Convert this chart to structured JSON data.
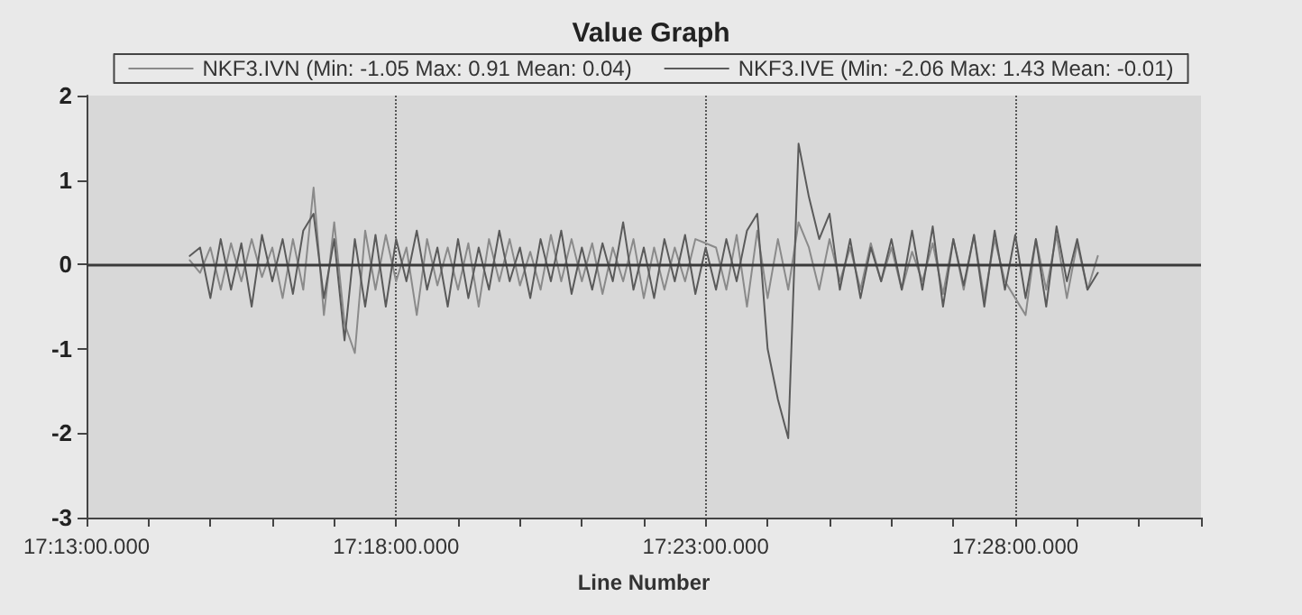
{
  "chart_data": {
    "type": "line",
    "title": "Value Graph",
    "xlabel": "Line Number",
    "categories": [
      "17:13:00.000",
      null,
      null,
      null,
      null,
      null,
      null,
      null,
      null,
      null,
      null,
      null,
      null,
      null,
      null,
      null,
      null,
      null,
      null,
      null,
      null,
      null,
      null,
      null,
      null,
      null,
      null,
      null,
      null,
      null,
      "17:18:00.000",
      null,
      null,
      null,
      null,
      null,
      null,
      null,
      null,
      null,
      null,
      null,
      null,
      null,
      null,
      null,
      null,
      null,
      null,
      null,
      null,
      null,
      null,
      null,
      null,
      null,
      null,
      null,
      null,
      null,
      "17:23:00.000",
      null,
      null,
      null,
      null,
      null,
      null,
      null,
      null,
      null,
      null,
      null,
      null,
      null,
      null,
      null,
      null,
      null,
      null,
      null,
      null,
      null,
      null,
      null,
      null,
      null,
      null,
      null,
      null,
      null,
      "17:28:00.000",
      null,
      null,
      null,
      null,
      null,
      null,
      null,
      null,
      null,
      null,
      null,
      null,
      null,
      null,
      null,
      null,
      null,
      null
    ],
    "series": [
      {
        "name": "NKF3.IVN (Min: -1.05 Max: 0.91 Mean: 0.04)",
        "color": "#8a8a8a",
        "values": [
          null,
          null,
          null,
          null,
          null,
          null,
          null,
          null,
          null,
          null,
          0.05,
          -0.1,
          0.2,
          -0.3,
          0.25,
          -0.2,
          0.3,
          -0.15,
          0.2,
          -0.4,
          0.3,
          -0.3,
          0.91,
          -0.6,
          0.5,
          -0.7,
          -1.05,
          0.4,
          -0.3,
          0.35,
          -0.2,
          0.2,
          -0.6,
          0.3,
          -0.25,
          0.2,
          -0.3,
          0.25,
          -0.5,
          0.3,
          -0.2,
          0.3,
          -0.25,
          0.15,
          -0.3,
          0.35,
          -0.2,
          0.3,
          -0.2,
          0.25,
          -0.35,
          0.2,
          -0.2,
          0.3,
          -0.4,
          0.2,
          -0.3,
          0.2,
          -0.2,
          0.3,
          0.25,
          0.2,
          -0.3,
          0.35,
          -0.5,
          0.4,
          -0.4,
          0.3,
          -0.3,
          0.5,
          0.2,
          -0.3,
          0.3,
          -0.2,
          0.2,
          -0.3,
          0.25,
          -0.2,
          0.2,
          -0.3,
          0.15,
          -0.2,
          0.25,
          -0.35,
          0.3,
          -0.3,
          0.35,
          -0.4,
          0.3,
          -0.2,
          -0.4,
          -0.6,
          0.3,
          -0.3,
          0.35,
          -0.4,
          0.25,
          -0.3,
          0.1,
          null,
          null,
          null,
          null,
          null,
          null,
          null,
          null,
          null,
          null
        ]
      },
      {
        "name": "NKF3.IVE (Min: -2.06 Max: 1.43 Mean: -0.01)",
        "color": "#5a5a5a",
        "values": [
          null,
          null,
          null,
          null,
          null,
          null,
          null,
          null,
          null,
          null,
          0.1,
          0.2,
          -0.4,
          0.3,
          -0.3,
          0.25,
          -0.5,
          0.35,
          -0.2,
          0.3,
          -0.35,
          0.4,
          0.6,
          -0.4,
          0.3,
          -0.9,
          0.3,
          -0.5,
          0.35,
          -0.5,
          0.3,
          -0.2,
          0.4,
          -0.3,
          0.2,
          -0.5,
          0.3,
          -0.4,
          0.2,
          -0.3,
          0.4,
          -0.2,
          0.2,
          -0.4,
          0.3,
          -0.2,
          0.4,
          -0.35,
          0.2,
          -0.3,
          0.25,
          -0.2,
          0.5,
          -0.3,
          0.2,
          -0.4,
          0.3,
          -0.2,
          0.35,
          -0.35,
          0.2,
          -0.3,
          0.3,
          -0.2,
          0.4,
          0.6,
          -1.0,
          -1.6,
          -2.06,
          1.43,
          0.8,
          0.3,
          0.6,
          -0.3,
          0.3,
          -0.4,
          0.2,
          -0.2,
          0.3,
          -0.3,
          0.4,
          -0.3,
          0.45,
          -0.5,
          0.3,
          -0.25,
          0.35,
          -0.5,
          0.4,
          -0.3,
          0.35,
          -0.4,
          0.3,
          -0.5,
          0.45,
          -0.2,
          0.3,
          -0.3,
          -0.1,
          null,
          null,
          null,
          null,
          null,
          null,
          null,
          null,
          null,
          null
        ]
      }
    ],
    "ylim": [
      -3,
      2
    ],
    "yticks": [
      -3,
      -2,
      -1,
      0,
      1,
      2
    ],
    "grid": "x",
    "legend": "top",
    "marker": "none",
    "line_style": "solid",
    "ref_lines": [
      {
        "axis": "y",
        "value": 0,
        "color": "#3a3a3a"
      }
    ]
  }
}
